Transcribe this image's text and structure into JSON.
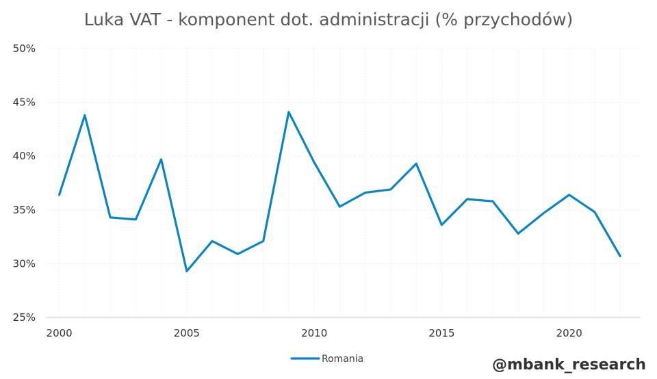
{
  "chart_data": {
    "type": "line",
    "title": "Luka VAT - komponent dot. administracji (% przychodów)",
    "xlabel": "",
    "ylabel": "",
    "x": [
      2000,
      2001,
      2002,
      2003,
      2004,
      2005,
      2006,
      2007,
      2008,
      2009,
      2010,
      2011,
      2012,
      2013,
      2014,
      2015,
      2016,
      2017,
      2018,
      2019,
      2020,
      2021,
      2022
    ],
    "series": [
      {
        "name": "Romania",
        "color": "#0b84c6",
        "values": [
          36.4,
          43.8,
          34.3,
          34.1,
          39.7,
          29.3,
          32.1,
          30.9,
          32.1,
          44.1,
          39.4,
          35.3,
          36.6,
          36.9,
          39.3,
          33.6,
          36.0,
          35.8,
          32.8,
          34.7,
          36.4,
          34.8,
          30.7
        ]
      }
    ],
    "xlim": [
      1999.5,
      2022.8
    ],
    "ylim": [
      25,
      50
    ],
    "y_ticks": [
      {
        "value": 25,
        "label": "25%"
      },
      {
        "value": 30,
        "label": "30%"
      },
      {
        "value": 35,
        "label": "35%"
      },
      {
        "value": 40,
        "label": "40%"
      },
      {
        "value": 45,
        "label": "45%"
      },
      {
        "value": 50,
        "label": "50%"
      }
    ],
    "x_ticks": [
      {
        "value": 2000,
        "label": "2000"
      },
      {
        "value": 2005,
        "label": "2005"
      },
      {
        "value": 2010,
        "label": "2010"
      },
      {
        "value": 2015,
        "label": "2015"
      },
      {
        "value": 2020,
        "label": "2020"
      }
    ],
    "grid": true,
    "legend_position": "bottom"
  },
  "watermark": "@mbank_research"
}
